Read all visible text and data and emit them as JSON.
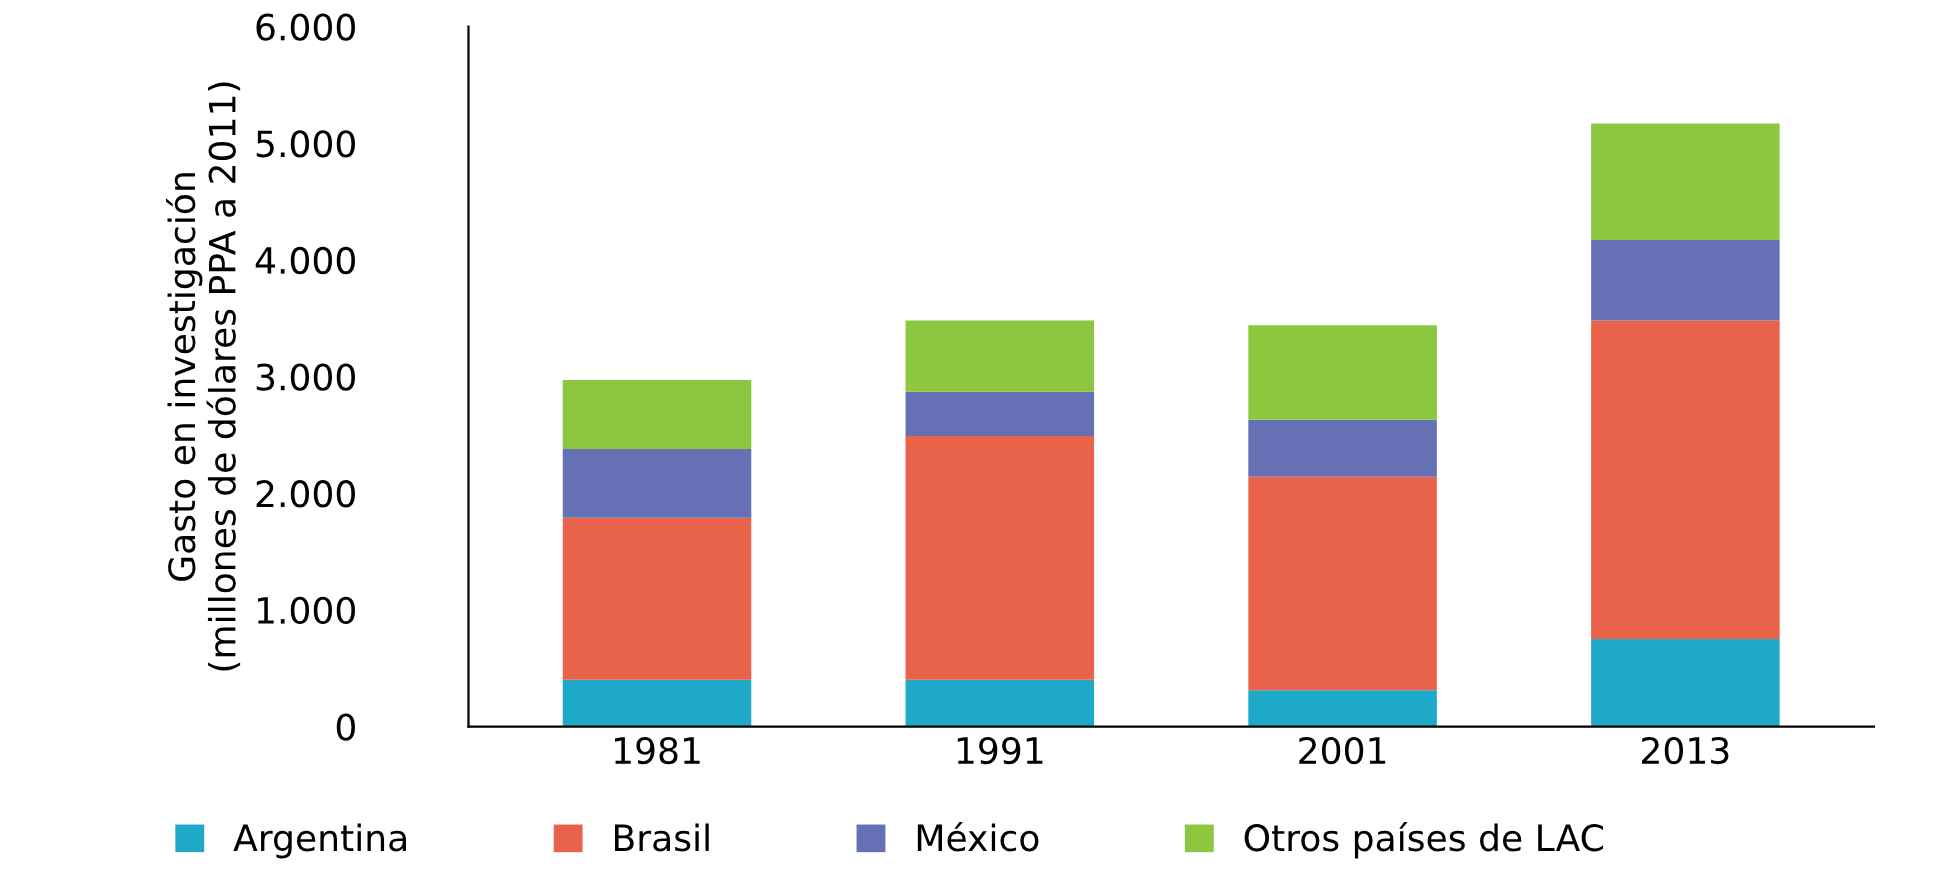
{
  "chart_data": {
    "type": "bar",
    "stacked": true,
    "ylabel": "Gasto en investigación\n(millones de dólares PPA a 2011)",
    "categories": [
      "1981",
      "1991",
      "2001",
      "2013"
    ],
    "series": [
      {
        "name": "Argentina",
        "color": "#1fa9c9",
        "values": [
          400,
          400,
          310,
          750
        ]
      },
      {
        "name": "Brasil",
        "color": "#e8634a",
        "values": [
          1390,
          2090,
          1830,
          2730
        ]
      },
      {
        "name": "México",
        "color": "#6670b5",
        "values": [
          590,
          380,
          490,
          690
        ]
      },
      {
        "name": "Otros países de LAC",
        "color": "#8dc63f",
        "values": [
          590,
          610,
          810,
          1000
        ]
      }
    ],
    "ylim": [
      0,
      6000
    ],
    "yticks": [
      {
        "value": 0,
        "label": "0"
      },
      {
        "value": 1000,
        "label": "1.000"
      },
      {
        "value": 2000,
        "label": "2.000"
      },
      {
        "value": 3000,
        "label": "3.000"
      },
      {
        "value": 4000,
        "label": "4.000"
      },
      {
        "value": 5000,
        "label": "5.000"
      },
      {
        "value": 6000,
        "label": "6.000"
      }
    ],
    "grid": false,
    "legend": "bottom"
  }
}
